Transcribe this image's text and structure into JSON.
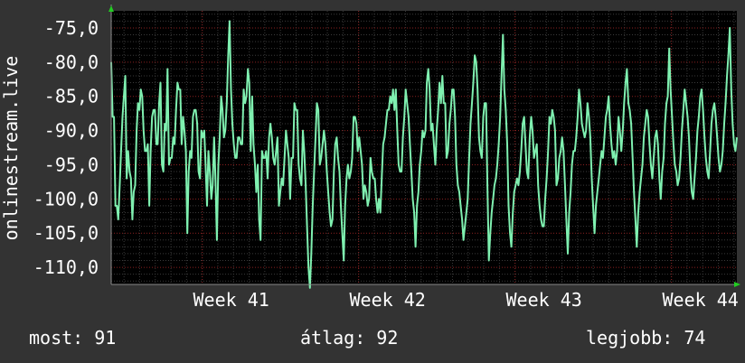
{
  "colors": {
    "background": "#333333",
    "plot_background": "#000000",
    "line": "#7ff0b0",
    "grid_major": "#8a2020",
    "grid_minor": "#3a3a3a",
    "axis_arrow": "#22cc22",
    "text": "#ffffff"
  },
  "stats": {
    "now": "most: 91",
    "avg": "átlag: 92",
    "best": "legjobb: 74"
  },
  "chart_data": {
    "type": "line",
    "ylabel": "onlinestream.live",
    "ylim": [
      -112.5,
      -72.5
    ],
    "yticks": [
      {
        "value": -75,
        "label": "-75,0"
      },
      {
        "value": -80,
        "label": "-80,0"
      },
      {
        "value": -85,
        "label": "-85,0"
      },
      {
        "value": -90,
        "label": "-90,0"
      },
      {
        "value": -95,
        "label": "-95,0"
      },
      {
        "value": -100,
        "label": "-100,0"
      },
      {
        "value": -105,
        "label": "-105,0"
      },
      {
        "value": -110,
        "label": "-110,0"
      }
    ],
    "xlim": [
      0,
      440
    ],
    "xticks": [
      {
        "value": 64,
        "label": "Week 41"
      },
      {
        "value": 174,
        "label": "Week 42"
      },
      {
        "value": 284,
        "label": "Week 43"
      },
      {
        "value": 394,
        "label": "Week 44"
      }
    ],
    "grid": true,
    "series": [
      {
        "values": [
          -80,
          -88,
          -88,
          -101,
          -101,
          -103,
          -98,
          -93,
          -88,
          -85,
          -82,
          -97,
          -93,
          -96,
          -97,
          -103,
          -99,
          -98,
          -90,
          -86,
          -87,
          -84,
          -85,
          -90,
          -93,
          -93,
          -92,
          -101,
          -93,
          -88,
          -87,
          -87,
          -92,
          -92,
          -86,
          -83,
          -95,
          -96,
          -89,
          -90,
          -81,
          -95,
          -94,
          -94,
          -91,
          -92,
          -87,
          -83,
          -84,
          -84,
          -92,
          -88,
          -90,
          -93,
          -105,
          -96,
          -93,
          -94,
          -88,
          -87,
          -87,
          -89,
          -96,
          -97,
          -90,
          -91,
          -90,
          -95,
          -101,
          -93,
          -96,
          -100,
          -98,
          -91,
          -97,
          -106,
          -95,
          -91,
          -85,
          -87,
          -91,
          -90,
          -86,
          -79,
          -74,
          -84,
          -89,
          -92,
          -94,
          -94,
          -91,
          -91,
          -92,
          -92,
          -84,
          -86,
          -85,
          -81,
          -83,
          -93,
          -85,
          -92,
          -95,
          -99,
          -95,
          -103,
          -106,
          -93,
          -94,
          -94,
          -93,
          -97,
          -91,
          -89,
          -91,
          -94,
          -95,
          -93,
          -91,
          -101,
          -99,
          -97,
          -98,
          -94,
          -90,
          -92,
          -94,
          -100,
          -94,
          -94,
          -86,
          -87,
          -87,
          -95,
          -97,
          -98,
          -90,
          -93,
          -98,
          -104,
          -110,
          -113,
          -108,
          -101,
          -96,
          -91,
          -86,
          -87,
          -95,
          -94,
          -92,
          -90,
          -92,
          -96,
          -99,
          -102,
          -104,
          -103,
          -96,
          -92,
          -91,
          -94,
          -96,
          -101,
          -105,
          -109,
          -101,
          -97,
          -95,
          -97,
          -96,
          -94,
          -88,
          -88,
          -89,
          -93,
          -91,
          -93,
          -95,
          -100,
          -98,
          -99,
          -101,
          -100,
          -94,
          -96,
          -97,
          -97,
          -100,
          -102,
          -100,
          -102,
          -97,
          -92,
          -91,
          -89,
          -87,
          -87,
          -85,
          -86,
          -84,
          -87,
          -84,
          -90,
          -95,
          -96,
          -96,
          -91,
          -88,
          -84,
          -86,
          -88,
          -92,
          -96,
          -100,
          -102,
          -107,
          -101,
          -99,
          -95,
          -93,
          -90,
          -91,
          -90,
          -83,
          -81,
          -84,
          -90,
          -89,
          -92,
          -95,
          -90,
          -87,
          -83,
          -86,
          -82,
          -86,
          -86,
          -94,
          -93,
          -89,
          -87,
          -84,
          -84,
          -88,
          -95,
          -98,
          -99,
          -101,
          -103,
          -106,
          -104,
          -102,
          -100,
          -94,
          -89,
          -86,
          -83,
          -79,
          -80,
          -84,
          -91,
          -93,
          -94,
          -88,
          -86,
          -86,
          -98,
          -109,
          -105,
          -102,
          -100,
          -98,
          -97,
          -95,
          -92,
          -88,
          -82,
          -76,
          -84,
          -87,
          -92,
          -101,
          -105,
          -107,
          -102,
          -99,
          -98,
          -97,
          -98,
          -96,
          -93,
          -89,
          -88,
          -92,
          -96,
          -97,
          -91,
          -88,
          -90,
          -94,
          -93,
          -92,
          -98,
          -101,
          -103,
          -104,
          -104,
          -100,
          -97,
          -93,
          -88,
          -89,
          -87,
          -88,
          -90,
          -98,
          -97,
          -94,
          -93,
          -91,
          -93,
          -98,
          -103,
          -108,
          -102,
          -99,
          -95,
          -93,
          -93,
          -91,
          -88,
          -84,
          -86,
          -89,
          -90,
          -91,
          -90,
          -86,
          -88,
          -91,
          -97,
          -101,
          -105,
          -101,
          -99,
          -97,
          -95,
          -93,
          -94,
          -91,
          -88,
          -87,
          -85,
          -89,
          -92,
          -94,
          -93,
          -95,
          -93,
          -88,
          -90,
          -93,
          -90,
          -86,
          -83,
          -81,
          -86,
          -87,
          -89,
          -94,
          -99,
          -103,
          -107,
          -102,
          -99,
          -97,
          -95,
          -91,
          -89,
          -87,
          -88,
          -92,
          -95,
          -97,
          -94,
          -91,
          -90,
          -92,
          -97,
          -100,
          -96,
          -94,
          -89,
          -86,
          -85,
          -78,
          -84,
          -88,
          -92,
          -95,
          -96,
          -98,
          -97,
          -94,
          -90,
          -87,
          -84,
          -86,
          -88,
          -91,
          -96,
          -99,
          -100,
          -97,
          -94,
          -90,
          -88,
          -85,
          -84,
          -87,
          -91,
          -94,
          -96,
          -97,
          -93,
          -89,
          -87,
          -86,
          -88,
          -91,
          -94,
          -96,
          -95,
          -93,
          -89,
          -86,
          -82,
          -79,
          -75,
          -84,
          -89,
          -92,
          -93,
          -91
        ]
      }
    ]
  }
}
